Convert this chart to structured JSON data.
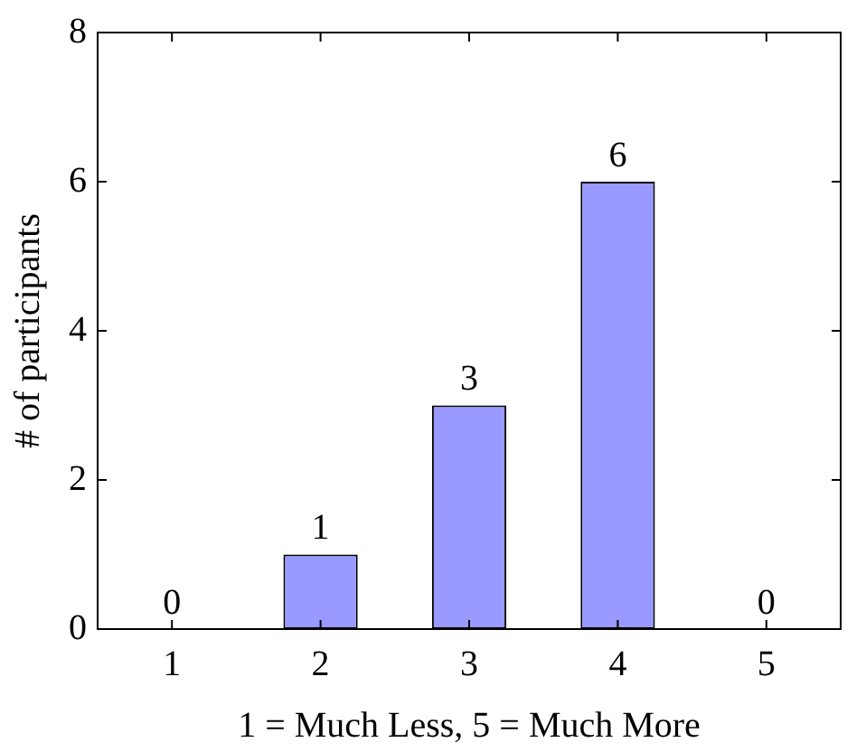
{
  "chart_data": {
    "type": "bar",
    "xlabel": "1 = Much Less, 5 = Much More",
    "ylabel": "# of participants",
    "categories": [
      "1",
      "2",
      "3",
      "4",
      "5"
    ],
    "values": [
      0,
      1,
      3,
      6,
      0
    ],
    "color": "#9999ff",
    "ylim": [
      0,
      8
    ],
    "yticks": [
      0,
      2,
      4,
      6,
      8
    ],
    "grid": false,
    "data_labels": true
  }
}
